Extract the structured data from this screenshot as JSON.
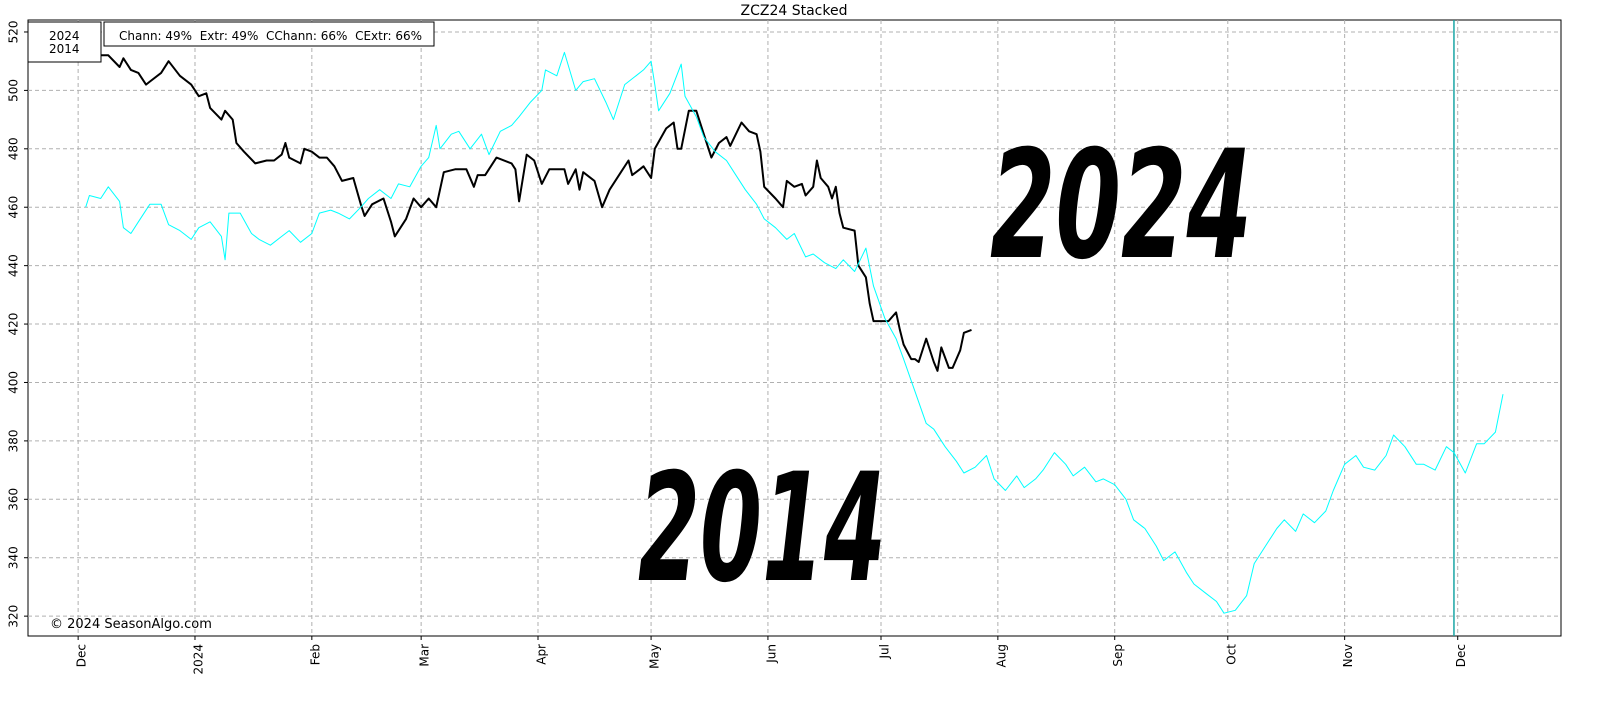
{
  "chart_data": {
    "type": "line",
    "title": "ZCZ24 Stacked",
    "stats": "Chann: 49%  Extr: 49%  CChann: 66%  CExtr: 66%",
    "credit": "© 2024 SeasonAlgo.com",
    "xlim": [
      -13.3,
      393.4
    ],
    "xticks": [
      {
        "value": 0,
        "label": "Dec"
      },
      {
        "value": 31,
        "label": "2024"
      },
      {
        "value": 62,
        "label": "Feb"
      },
      {
        "value": 91,
        "label": "Mar"
      },
      {
        "value": 122,
        "label": "Apr"
      },
      {
        "value": 152,
        "label": "May"
      },
      {
        "value": 183,
        "label": "Jun"
      },
      {
        "value": 213,
        "label": "Jul"
      },
      {
        "value": 244,
        "label": "Aug"
      },
      {
        "value": 275,
        "label": "Sep"
      },
      {
        "value": 305,
        "label": "Oct"
      },
      {
        "value": 336,
        "label": "Nov"
      },
      {
        "value": 366,
        "label": "Dec"
      }
    ],
    "ylim": [
      313.2,
      524.1
    ],
    "yticks": [
      320,
      340,
      360,
      380,
      400,
      420,
      440,
      460,
      480,
      500,
      520
    ],
    "grid": true,
    "vline": 365,
    "vline_color": "#1aa6a6",
    "series": [
      {
        "name": "2024",
        "color": "#000000",
        "x": [
          0,
          3,
          6,
          8,
          11,
          12,
          14,
          16,
          18,
          19,
          22,
          24,
          27,
          30,
          32,
          34,
          35,
          38,
          39,
          41,
          42,
          44,
          47,
          50,
          52,
          54,
          55,
          56,
          59,
          60,
          62,
          64,
          66,
          68,
          70,
          73,
          75,
          76,
          78,
          81,
          83,
          84,
          87,
          89,
          91,
          93,
          95,
          97,
          100,
          103,
          105,
          106,
          108,
          111,
          115,
          116,
          117,
          119,
          121,
          123,
          125,
          129,
          130,
          132,
          133,
          134,
          137,
          139,
          141,
          144,
          146,
          147,
          149,
          150,
          152,
          153,
          156,
          158,
          159,
          160,
          162,
          164,
          166,
          168,
          170,
          172,
          173,
          176,
          178,
          180,
          181,
          182,
          185,
          187,
          188,
          190,
          192,
          193,
          195,
          196,
          197,
          199,
          200,
          201,
          202,
          203,
          206,
          207,
          209,
          210,
          211,
          213,
          215,
          217,
          218,
          219,
          221,
          222,
          223,
          225,
          227,
          228,
          229,
          231,
          232,
          234,
          235,
          237
        ],
        "values": [
          514,
          513,
          512,
          512,
          508,
          511,
          507,
          506,
          502,
          503,
          506,
          510,
          505,
          502,
          498,
          499,
          494,
          490,
          493,
          490,
          482,
          479,
          475,
          476,
          476,
          478,
          482,
          477,
          475,
          480,
          479,
          477,
          477,
          474,
          469,
          470,
          461,
          457,
          461,
          463,
          455,
          450,
          456,
          463,
          460,
          463,
          460,
          472,
          473,
          473,
          467,
          471,
          471,
          477,
          475,
          473,
          462,
          478,
          476,
          468,
          473,
          473,
          468,
          473,
          466,
          472,
          469,
          460,
          466,
          472,
          476,
          471,
          473,
          474,
          470,
          480,
          487,
          489,
          480,
          480,
          493,
          493,
          485,
          477,
          482,
          484,
          481,
          489,
          486,
          485,
          479,
          467,
          463,
          460,
          469,
          467,
          468,
          464,
          467,
          476,
          470,
          467,
          463,
          467,
          458,
          453,
          452,
          440,
          436,
          427,
          421,
          421,
          421,
          424,
          418,
          413,
          408,
          408,
          407,
          415,
          407,
          404,
          412,
          405,
          405,
          411,
          417,
          418
        ]
      },
      {
        "name": "2014",
        "color": "#00ffff",
        "x": [
          2,
          3,
          6,
          8,
          11,
          12,
          14,
          16,
          19,
          22,
          24,
          27,
          30,
          32,
          35,
          38,
          39,
          40,
          43,
          46,
          48,
          51,
          54,
          56,
          59,
          62,
          64,
          67,
          69,
          72,
          75,
          77,
          80,
          83,
          85,
          88,
          91,
          93,
          95,
          96,
          99,
          101,
          104,
          107,
          109,
          112,
          115,
          117,
          120,
          123,
          124,
          127,
          129,
          132,
          134,
          137,
          140,
          142,
          145,
          148,
          150,
          152,
          153,
          154,
          157,
          160,
          161,
          164,
          166,
          169,
          172,
          174,
          177,
          180,
          182,
          185,
          188,
          190,
          193,
          195,
          198,
          201,
          203,
          206,
          209,
          211,
          214,
          217,
          219,
          222,
          225,
          227,
          230,
          233,
          235,
          238,
          241,
          243,
          246,
          249,
          251,
          254,
          256,
          259,
          262,
          264,
          267,
          270,
          272,
          275,
          278,
          280,
          283,
          286,
          288,
          291,
          294,
          296,
          299,
          302,
          304,
          307,
          310,
          312,
          315,
          318,
          320,
          323,
          325,
          328,
          331,
          333,
          336,
          339,
          341,
          344,
          347,
          349,
          352,
          355,
          357,
          360,
          363,
          365,
          368,
          371,
          373,
          376,
          378
        ],
        "values": [
          460,
          464,
          463,
          467,
          462,
          453,
          451,
          455,
          461,
          461,
          454,
          452,
          449,
          453,
          455,
          450,
          442,
          458,
          458,
          451,
          449,
          447,
          450,
          452,
          448,
          451,
          458,
          459,
          458,
          456,
          460,
          463,
          466,
          463,
          468,
          467,
          474,
          477,
          488,
          480,
          485,
          486,
          480,
          485,
          478,
          486,
          488,
          491,
          496,
          500,
          507,
          505,
          513,
          500,
          503,
          504,
          496,
          490,
          502,
          505,
          507,
          510,
          502,
          493,
          499,
          509,
          498,
          491,
          484,
          479,
          476,
          472,
          466,
          461,
          456,
          453,
          449,
          451,
          443,
          444,
          441,
          439,
          442,
          438,
          446,
          433,
          422,
          415,
          408,
          397,
          386,
          384,
          378,
          373,
          369,
          371,
          375,
          367,
          363,
          368,
          364,
          367,
          370,
          376,
          372,
          368,
          371,
          366,
          367,
          365,
          360,
          353,
          350,
          344,
          339,
          342,
          335,
          331,
          328,
          325,
          321,
          322,
          327,
          338,
          344,
          350,
          353,
          349,
          355,
          352,
          356,
          363,
          372,
          375,
          371,
          370,
          375,
          382,
          378,
          372,
          372,
          370,
          378,
          376,
          369,
          379,
          379,
          383,
          396
        ]
      }
    ]
  }
}
